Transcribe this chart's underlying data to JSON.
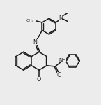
{
  "bg_color": "#ececec",
  "line_color": "#1a1a1a",
  "lw": 1.1,
  "fig_w": 1.45,
  "fig_h": 1.5,
  "dpi": 100,
  "xlim": [
    0,
    10
  ],
  "ylim": [
    0,
    10.3
  ]
}
